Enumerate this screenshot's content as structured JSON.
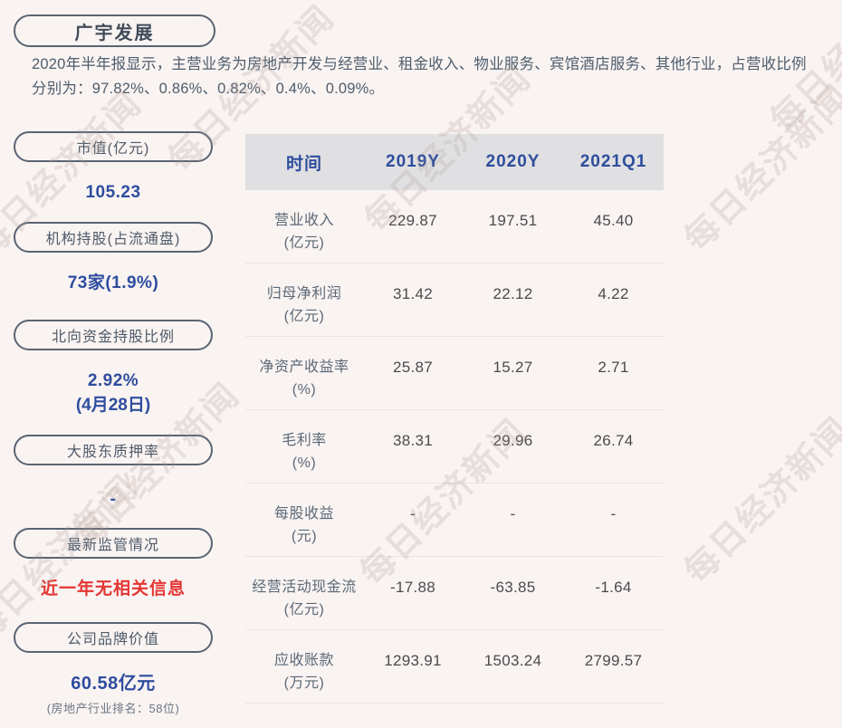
{
  "page": {
    "title": "广宇发展",
    "description": "2020年半年报显示，主营业务为房地产开发与经营业、租金收入、物业服务、宾馆酒店服务、其他行业，占营收比例分别为：97.82%、0.86%、0.82%、0.4%、0.09%。"
  },
  "watermark": {
    "text": "每日经济新闻"
  },
  "sidebar": {
    "items": [
      {
        "label": "市值(亿元)",
        "value": "105.23"
      },
      {
        "label": "机构持股(占流通盘)",
        "value": "73家(1.9%)"
      },
      {
        "label": "北向资金持股比例",
        "value": "2.92%",
        "value2": "(4月28日)"
      },
      {
        "label": "大股东质押率",
        "value": "-"
      },
      {
        "label": "最新监管情况",
        "value": "近一年无相关信息"
      },
      {
        "label": "公司品牌价值",
        "value": "60.58亿元",
        "note": "(房地产行业排名：58位)"
      }
    ]
  },
  "table": {
    "header": [
      "时间",
      "2019Y",
      "2020Y",
      "2021Q1"
    ],
    "rows": [
      {
        "name": "营业收入",
        "unit": "(亿元)",
        "values": [
          "229.87",
          "197.51",
          "45.40"
        ]
      },
      {
        "name": "归母净利润",
        "unit": "(亿元)",
        "values": [
          "31.42",
          "22.12",
          "4.22"
        ]
      },
      {
        "name": "净资产收益率",
        "unit": "(%)",
        "values": [
          "25.87",
          "15.27",
          "2.71"
        ]
      },
      {
        "name": "毛利率",
        "unit": "(%)",
        "values": [
          "38.31",
          "29.96",
          "26.74"
        ]
      },
      {
        "name": "每股收益",
        "unit": "(元)",
        "values": [
          "-",
          "-",
          "-"
        ]
      },
      {
        "name": "经营活动现金流",
        "unit": "(亿元)",
        "values": [
          "-17.88",
          "-63.85",
          "-1.64"
        ]
      },
      {
        "name": "应收账款",
        "unit": "(万元)",
        "values": [
          "1293.91",
          "1503.24",
          "2799.57"
        ]
      }
    ]
  },
  "colors": {
    "background": "#f9f3f2",
    "accent_blue": "#2e4d9e",
    "alert_red": "#e43532",
    "pill_border": "#5a6472",
    "table_header_bg": "#e0e0e2",
    "label_gray_blue": "#5c6977",
    "value_dark": "#4b4b4d",
    "watermark": "#e9e2e0"
  }
}
